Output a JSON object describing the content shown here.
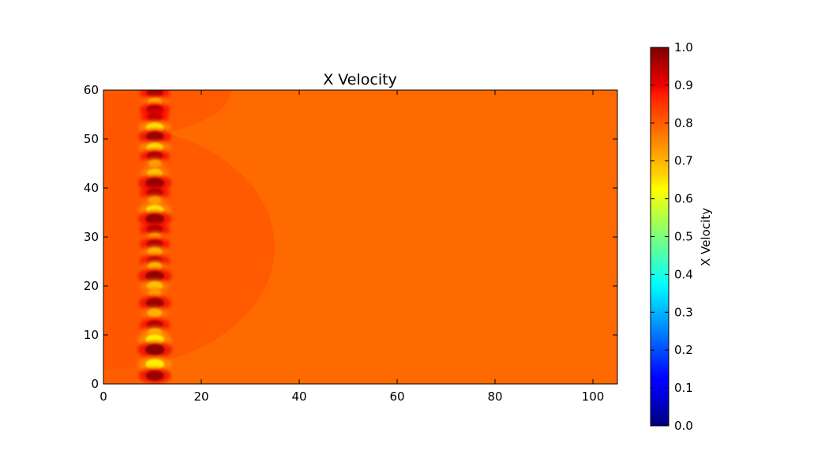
{
  "chart_data": {
    "type": "heatmap",
    "title": "X Velocity",
    "xlabel": "",
    "ylabel": "",
    "xlim": [
      0,
      105
    ],
    "ylim": [
      0,
      60
    ],
    "x_ticks": [
      0,
      20,
      40,
      60,
      80,
      100
    ],
    "y_ticks": [
      0,
      10,
      20,
      30,
      40,
      50,
      60
    ],
    "background_value": 0.81,
    "inflow_value": 0.79,
    "wake_region": {
      "center_x": 0,
      "center_y": 28,
      "radius_x": 35,
      "radius_y": 25,
      "value": 0.8
    },
    "upper_wake_region": {
      "center_x": 0,
      "center_y": 60,
      "radius_x": 26,
      "radius_y": 10,
      "value": 0.8
    },
    "turbine_column_x": 10.5,
    "hotspots": [
      {
        "y": 59.5,
        "value": 0.95
      },
      {
        "y": 57.5,
        "value": 0.7
      },
      {
        "y": 56.0,
        "value": 0.95
      },
      {
        "y": 54.5,
        "value": 0.93
      },
      {
        "y": 52.3,
        "value": 0.65
      },
      {
        "y": 50.5,
        "value": 0.97
      },
      {
        "y": 48.2,
        "value": 0.66
      },
      {
        "y": 46.5,
        "value": 0.95
      },
      {
        "y": 45.0,
        "value": 0.72
      },
      {
        "y": 43.0,
        "value": 0.68
      },
      {
        "y": 41.0,
        "value": 0.98
      },
      {
        "y": 39.0,
        "value": 0.95
      },
      {
        "y": 37.5,
        "value": 0.72
      },
      {
        "y": 35.5,
        "value": 0.65
      },
      {
        "y": 33.7,
        "value": 0.98
      },
      {
        "y": 31.5,
        "value": 0.95
      },
      {
        "y": 30.0,
        "value": 0.72
      },
      {
        "y": 28.5,
        "value": 0.95
      },
      {
        "y": 27.0,
        "value": 0.7
      },
      {
        "y": 25.0,
        "value": 0.95
      },
      {
        "y": 24.0,
        "value": 0.7
      },
      {
        "y": 22.0,
        "value": 0.98
      },
      {
        "y": 20.0,
        "value": 0.68
      },
      {
        "y": 18.5,
        "value": 0.72
      },
      {
        "y": 16.5,
        "value": 0.97
      },
      {
        "y": 14.5,
        "value": 0.7
      },
      {
        "y": 12.0,
        "value": 0.95
      },
      {
        "y": 10.5,
        "value": 0.7
      },
      {
        "y": 9.0,
        "value": 0.64
      },
      {
        "y": 7.0,
        "value": 0.99
      },
      {
        "y": 4.0,
        "value": 0.64
      },
      {
        "y": 1.7,
        "value": 0.97
      }
    ],
    "colorbar": {
      "label": "X Velocity",
      "colormap": "jet",
      "range": [
        0.0,
        1.0
      ],
      "ticks": [
        "0.0",
        "0.1",
        "0.2",
        "0.3",
        "0.4",
        "0.5",
        "0.6",
        "0.7",
        "0.8",
        "0.9",
        "1.0"
      ]
    }
  }
}
